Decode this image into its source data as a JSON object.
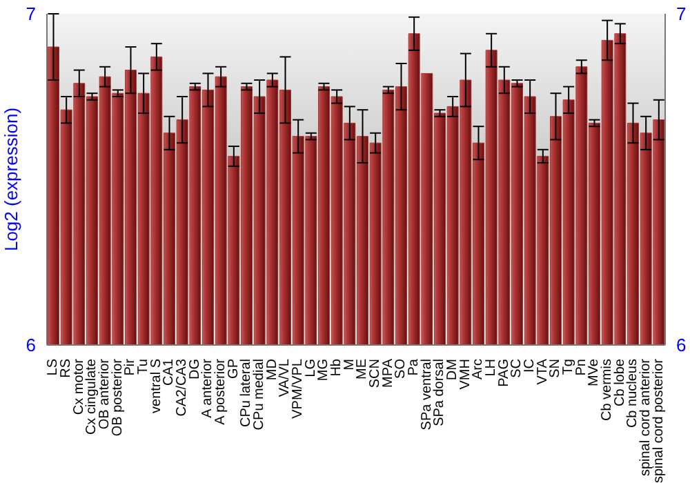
{
  "chart_data": {
    "type": "bar",
    "ylabel": "Log2 (expression)",
    "categories": [
      "LS",
      "RS",
      "Cx motor",
      "Cx cingulate",
      "OB anterior",
      "OB posterior",
      "Pir",
      "Tu",
      "ventral S",
      "CA1",
      "CA2/CA3",
      "DG",
      "A anterior",
      "A posterior",
      "GP",
      "CPu lateral",
      "CPu medial",
      "MD",
      "VA/VL",
      "VPM/VPL",
      "LG",
      "MG",
      "Hb",
      "M",
      "ME",
      "SCN",
      "MPA",
      "SO",
      "Pa",
      "SPa ventral",
      "SPa dorsal",
      "DM",
      "VMH",
      "Arc",
      "LH",
      "PAG",
      "SC",
      "IC",
      "VTA",
      "SN",
      "Tg",
      "Pn",
      "MVe",
      "Cb vermis",
      "Cb lobe",
      "Cb nucleus",
      "spinal cord anterior",
      "spinal cord posterior"
    ],
    "values": [
      6.9,
      6.71,
      6.79,
      6.75,
      6.81,
      6.76,
      6.83,
      6.76,
      6.87,
      6.64,
      6.68,
      6.78,
      6.77,
      6.81,
      6.57,
      6.78,
      6.75,
      6.8,
      6.77,
      6.63,
      6.63,
      6.78,
      6.75,
      6.67,
      6.63,
      6.61,
      6.77,
      6.78,
      6.94,
      6.82,
      6.7,
      6.72,
      6.8,
      6.61,
      6.89,
      6.8,
      6.79,
      6.75,
      6.57,
      6.69,
      6.74,
      6.84,
      6.67,
      6.92,
      6.94,
      6.67,
      6.64,
      6.68
    ],
    "errors": [
      0.1,
      0.04,
      0.04,
      0.01,
      0.03,
      0.01,
      0.07,
      0.06,
      0.04,
      0.05,
      0.07,
      0.01,
      0.05,
      0.03,
      0.03,
      0.01,
      0.05,
      0.02,
      0.1,
      0.05,
      0.01,
      0.01,
      0.02,
      0.05,
      0.08,
      0.03,
      0.01,
      0.07,
      0.05,
      null,
      0.01,
      0.03,
      0.08,
      0.05,
      0.05,
      0.04,
      0.01,
      0.05,
      0.02,
      0.07,
      0.04,
      0.02,
      0.01,
      0.06,
      0.03,
      0.06,
      0.05,
      0.06
    ],
    "color": "#b03535",
    "ylim": [
      6,
      7
    ],
    "yticks": [
      6,
      7
    ],
    "y2lim": [
      6,
      7
    ],
    "y2ticks": [
      6,
      7
    ],
    "grid": false
  }
}
